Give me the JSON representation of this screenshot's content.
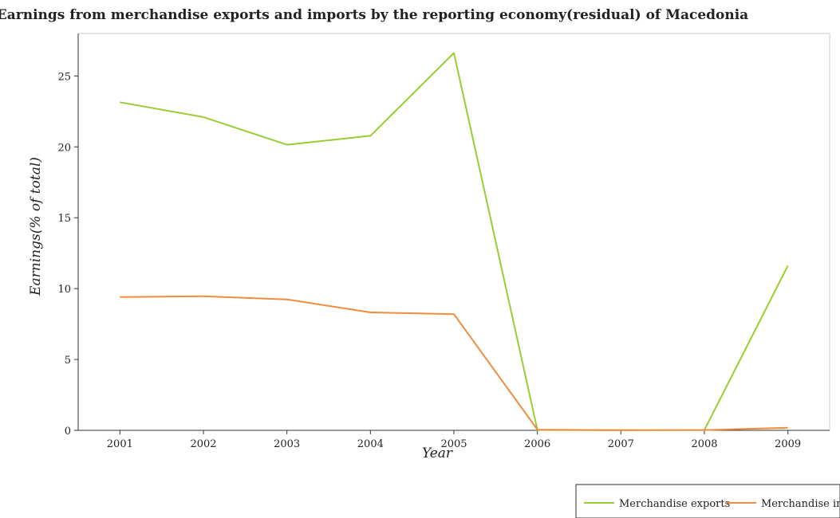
{
  "chart_data": {
    "type": "line",
    "title": "Earnings from merchandise exports and imports by the reporting economy(residual) of Macedonia",
    "xlabel": "Year",
    "ylabel": "Earnings(% of total)",
    "categories": [
      "2001",
      "2002",
      "2003",
      "2004",
      "2005",
      "2006",
      "2007",
      "2008",
      "2009"
    ],
    "ylim": [
      0,
      28
    ],
    "yticks": [
      0,
      5,
      10,
      15,
      20,
      25
    ],
    "series": [
      {
        "name": "Merchandise exports",
        "color": "#9acd32",
        "values": [
          23.15,
          22.1,
          20.15,
          20.78,
          26.62,
          0.02,
          0.01,
          0.02,
          11.62
        ]
      },
      {
        "name": "Merchandise imports",
        "color": "#f08c3c",
        "values": [
          9.4,
          9.46,
          9.24,
          8.32,
          8.2,
          0.05,
          0.01,
          0.02,
          0.18
        ]
      }
    ],
    "legend_position": "bottom-right",
    "grid": false
  }
}
